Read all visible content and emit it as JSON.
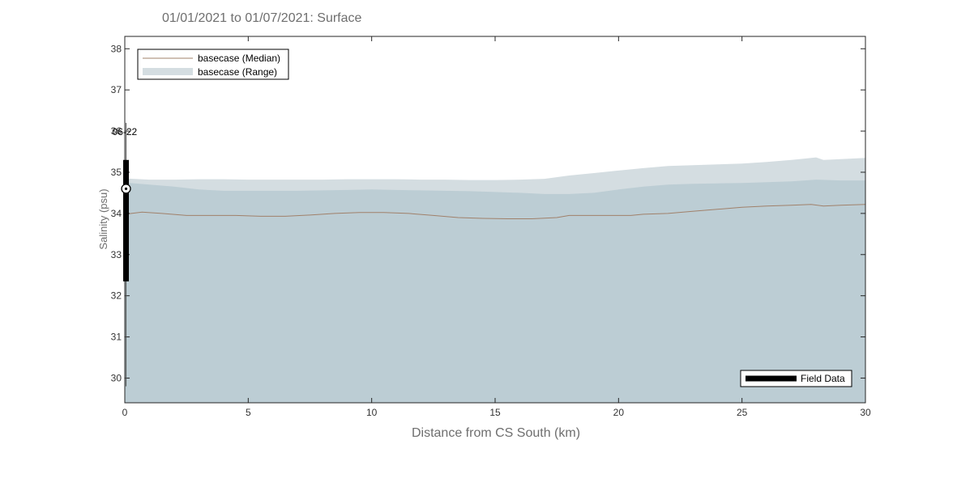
{
  "chart_data": {
    "type": "area",
    "title": "01/01/2021 to 01/07/2021: Surface",
    "xlabel": "Distance from CS South (km)",
    "ylabel": "Salinity (psu)",
    "xlim": [
      0,
      30
    ],
    "ylim": [
      29.4,
      38.3
    ],
    "xticks": [
      0,
      5,
      10,
      15,
      20,
      25,
      30
    ],
    "yticks": [
      30,
      31,
      32,
      33,
      34,
      35,
      36,
      37,
      38
    ],
    "grid": false,
    "legend_placement": "top-left",
    "series": [
      {
        "name": "basecase (Median)",
        "kind": "line",
        "color": "#a0806a",
        "x": [
          0,
          0.7,
          1.5,
          2.5,
          3.5,
          4.5,
          5.5,
          6.5,
          7.5,
          8.5,
          9.5,
          10.5,
          11.5,
          12.5,
          13.5,
          14.5,
          15.5,
          16.5,
          17.5,
          18,
          18.5,
          19.5,
          20.5,
          21,
          22,
          23,
          24,
          25,
          26,
          27,
          27.8,
          28.3,
          29,
          30
        ],
        "y": [
          33.98,
          34.03,
          34.0,
          33.95,
          33.95,
          33.95,
          33.93,
          33.93,
          33.96,
          34.0,
          34.02,
          34.02,
          34.0,
          33.95,
          33.9,
          33.88,
          33.87,
          33.87,
          33.9,
          33.95,
          33.95,
          33.95,
          33.95,
          33.98,
          34.0,
          34.05,
          34.1,
          34.15,
          34.18,
          34.2,
          34.22,
          34.18,
          34.2,
          34.22
        ]
      },
      {
        "name": "basecase (Range)",
        "kind": "band",
        "color": "#d4dde1",
        "x": [
          0,
          1,
          2,
          3,
          4,
          5,
          6,
          7,
          8,
          9,
          10,
          11,
          12,
          13,
          14,
          15,
          16,
          17,
          18,
          19,
          20,
          21,
          22,
          23,
          24,
          25,
          26,
          27,
          27.5,
          28,
          28.3,
          29,
          30
        ],
        "upper": [
          34.85,
          34.82,
          34.82,
          34.83,
          34.83,
          34.82,
          34.82,
          34.82,
          34.82,
          34.83,
          34.83,
          34.83,
          34.82,
          34.82,
          34.81,
          34.81,
          34.82,
          34.84,
          34.92,
          34.98,
          35.04,
          35.1,
          35.15,
          35.17,
          35.19,
          35.21,
          35.25,
          35.3,
          35.33,
          35.36,
          35.3,
          35.32,
          35.35
        ],
        "lower": [
          29.4,
          29.4,
          29.4,
          29.4,
          29.4,
          29.4,
          29.4,
          29.4,
          29.4,
          29.4,
          29.4,
          29.4,
          29.4,
          29.4,
          29.4,
          29.4,
          29.4,
          29.4,
          29.4,
          29.4,
          29.4,
          29.4,
          29.4,
          29.4,
          29.4,
          29.4,
          29.4,
          29.4,
          29.4,
          29.4,
          29.4,
          29.4,
          29.4
        ]
      },
      {
        "name": "",
        "kind": "band-inner",
        "color": "#bccdd4",
        "x": [
          0,
          1,
          2,
          3,
          4,
          5,
          6,
          7,
          8,
          9,
          10,
          11,
          12,
          13,
          14,
          15,
          16,
          17,
          18,
          19,
          20,
          21,
          22,
          23,
          24,
          25,
          26,
          27,
          28,
          29,
          30
        ],
        "upper": [
          34.75,
          34.7,
          34.65,
          34.58,
          34.55,
          34.55,
          34.55,
          34.55,
          34.56,
          34.57,
          34.58,
          34.57,
          34.56,
          34.55,
          34.54,
          34.52,
          34.5,
          34.47,
          34.47,
          34.5,
          34.58,
          34.65,
          34.7,
          34.72,
          34.73,
          34.74,
          34.76,
          34.78,
          34.82,
          34.8,
          34.8
        ],
        "lower": [
          29.4,
          29.4,
          29.4,
          29.4,
          29.4,
          29.4,
          29.4,
          29.4,
          29.4,
          29.4,
          29.4,
          29.4,
          29.4,
          29.4,
          29.4,
          29.4,
          29.4,
          29.4,
          29.4,
          29.4,
          29.4,
          29.4,
          29.4,
          29.4,
          29.4,
          29.4,
          29.4,
          29.4,
          29.4,
          29.4,
          29.4
        ]
      },
      {
        "name": "Field Data",
        "kind": "errorbar",
        "color": "#000000",
        "x": 0.05,
        "mean": 34.6,
        "low": 32.35,
        "high": 35.3
      }
    ],
    "annotation": "06-22",
    "legend": {
      "top_left": [
        "basecase (Median)",
        "basecase (Range)"
      ],
      "bottom_right": [
        "Field Data"
      ]
    }
  }
}
